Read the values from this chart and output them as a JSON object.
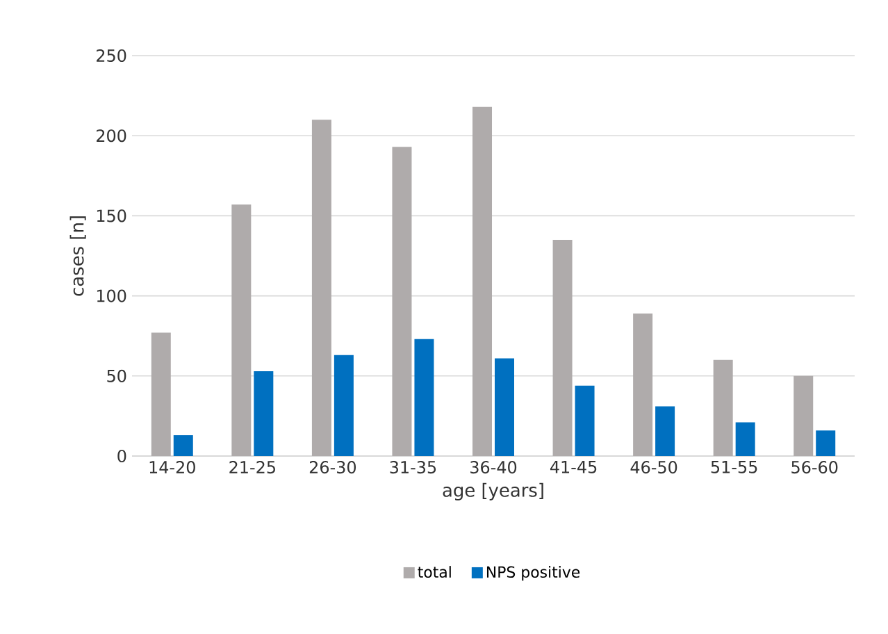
{
  "chart_data": {
    "type": "bar",
    "xlabel": "age [years]",
    "ylabel": "cases [n]",
    "categories": [
      "14-20",
      "21-25",
      "26-30",
      "31-35",
      "36-40",
      "41-45",
      "46-50",
      "51-55",
      "56-60"
    ],
    "series": [
      {
        "name": "total",
        "color": "#afabab",
        "values": [
          77,
          157,
          210,
          193,
          218,
          135,
          89,
          60,
          50
        ]
      },
      {
        "name": "NPS positive",
        "color": "#0070c0",
        "values": [
          13,
          53,
          63,
          73,
          61,
          44,
          31,
          21,
          16
        ]
      }
    ],
    "ylim": [
      0,
      250
    ],
    "yticks": [
      0,
      50,
      100,
      150,
      200,
      250
    ],
    "grid": "y",
    "legend": "bottom"
  }
}
